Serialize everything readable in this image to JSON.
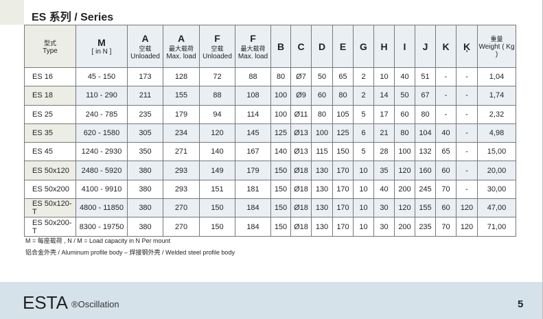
{
  "title": "ES 系列 / Series",
  "headers": [
    {
      "big": "",
      "cn": "型式",
      "en": "Type"
    },
    {
      "big": "M",
      "cn": "",
      "en": "[ in N ]"
    },
    {
      "big": "A",
      "cn": "空载",
      "en": "Unloaded"
    },
    {
      "big": "A",
      "cn": "最大载荷",
      "en": "Max. load"
    },
    {
      "big": "F",
      "cn": "空载",
      "en": "Unloaded"
    },
    {
      "big": "F",
      "cn": "最大载荷",
      "en": "Max. load"
    },
    {
      "big": "B"
    },
    {
      "big": "C"
    },
    {
      "big": "D"
    },
    {
      "big": "E"
    },
    {
      "big": "G"
    },
    {
      "big": "H"
    },
    {
      "big": "I"
    },
    {
      "big": "J"
    },
    {
      "big": "K"
    },
    {
      "big": "Ķ"
    },
    {
      "big": "",
      "cn": "重量",
      "en": "Weight ( Kg )"
    }
  ],
  "rows": [
    [
      "ES 16",
      "45 - 150",
      "173",
      "128",
      "72",
      "88",
      "80",
      "Ø7",
      "50",
      "65",
      "2",
      "10",
      "40",
      "51",
      "-",
      "-",
      "1,04"
    ],
    [
      "ES 18",
      "110 - 290",
      "211",
      "155",
      "88",
      "108",
      "100",
      "Ø9",
      "60",
      "80",
      "2",
      "14",
      "50",
      "67",
      "-",
      "-",
      "1,74"
    ],
    [
      "ES 25",
      "240 - 785",
      "235",
      "179",
      "94",
      "114",
      "100",
      "Ø11",
      "80",
      "105",
      "5",
      "17",
      "60",
      "80",
      "-",
      "-",
      "2,32"
    ],
    [
      "ES 35",
      "620 - 1580",
      "305",
      "234",
      "120",
      "145",
      "125",
      "Ø13",
      "100",
      "125",
      "6",
      "21",
      "80",
      "104",
      "40",
      "-",
      "4,98"
    ],
    [
      "ES 45",
      "1240 - 2930",
      "350",
      "271",
      "140",
      "167",
      "140",
      "Ø13",
      "115",
      "150",
      "5",
      "28",
      "100",
      "132",
      "65",
      "-",
      "15,00"
    ],
    [
      "ES 50x120",
      "2480 - 5920",
      "380",
      "293",
      "149",
      "179",
      "150",
      "Ø18",
      "130",
      "170",
      "10",
      "35",
      "120",
      "160",
      "60",
      "-",
      "20,00"
    ],
    [
      "ES 50x200",
      "4100 - 9910",
      "380",
      "293",
      "151",
      "181",
      "150",
      "Ø18",
      "130",
      "170",
      "10",
      "40",
      "200",
      "245",
      "70",
      "-",
      "30,00"
    ],
    [
      "ES 50x120-T",
      "4800 - 11850",
      "380",
      "270",
      "150",
      "184",
      "150",
      "Ø18",
      "130",
      "170",
      "10",
      "30",
      "120",
      "155",
      "60",
      "120",
      "47,00"
    ],
    [
      "ES 50x200-T",
      "8300 - 19750",
      "380",
      "270",
      "150",
      "184",
      "150",
      "Ø18",
      "130",
      "170",
      "10",
      "30",
      "200",
      "235",
      "70",
      "120",
      "71,00"
    ]
  ],
  "notes": [
    "M = 每座载荷 , N / M = Load capacity in N Per mount",
    "铝合金外壳 / Aluminum profile body – 焊接钢外壳 / Welded steel profile body"
  ],
  "footer": {
    "brand": "ESTA",
    "sub": "®Oscillation",
    "page": "5"
  },
  "colors": {
    "header_bg": "#eaeff3",
    "type_bg": "#eceee5",
    "footer_bg": "#d6e2ea"
  }
}
